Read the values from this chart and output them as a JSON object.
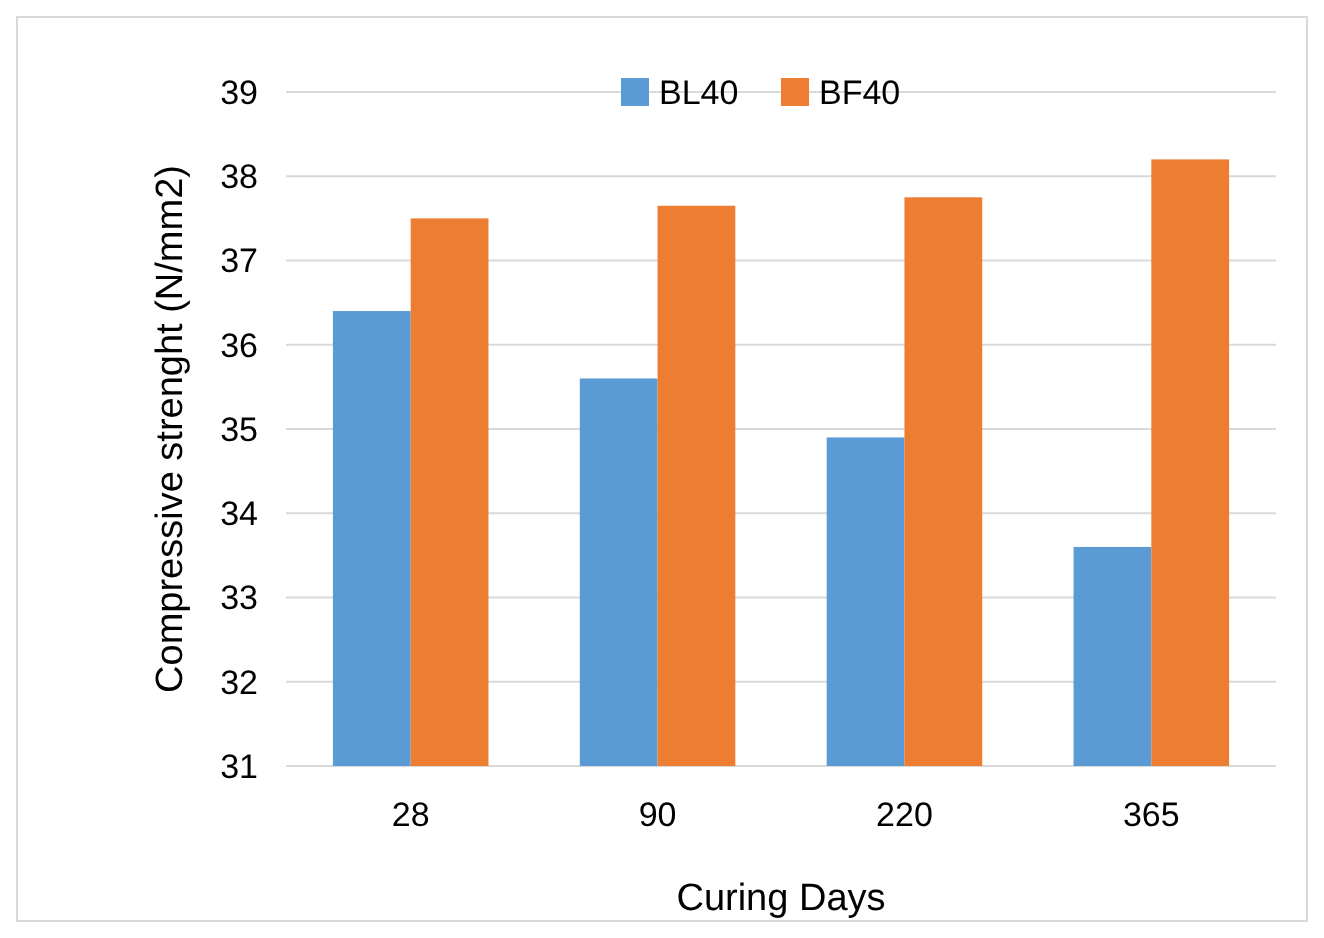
{
  "chart_data": {
    "type": "bar",
    "xlabel": "Curing Days",
    "ylabel": "Compressive strenght (N/mm2)",
    "categories": [
      "28",
      "90",
      "220",
      "365"
    ],
    "series": [
      {
        "name": "BL40",
        "color": "#5b9bd5",
        "values": [
          36.4,
          35.6,
          34.9,
          33.6
        ]
      },
      {
        "name": "BF40",
        "color": "#ed7d31",
        "values": [
          37.5,
          37.65,
          37.75,
          38.2
        ]
      }
    ],
    "ylim": [
      31,
      39
    ],
    "yticks": [
      31,
      32,
      33,
      34,
      35,
      36,
      37,
      38,
      39
    ],
    "grid": "y",
    "legend": "top"
  }
}
